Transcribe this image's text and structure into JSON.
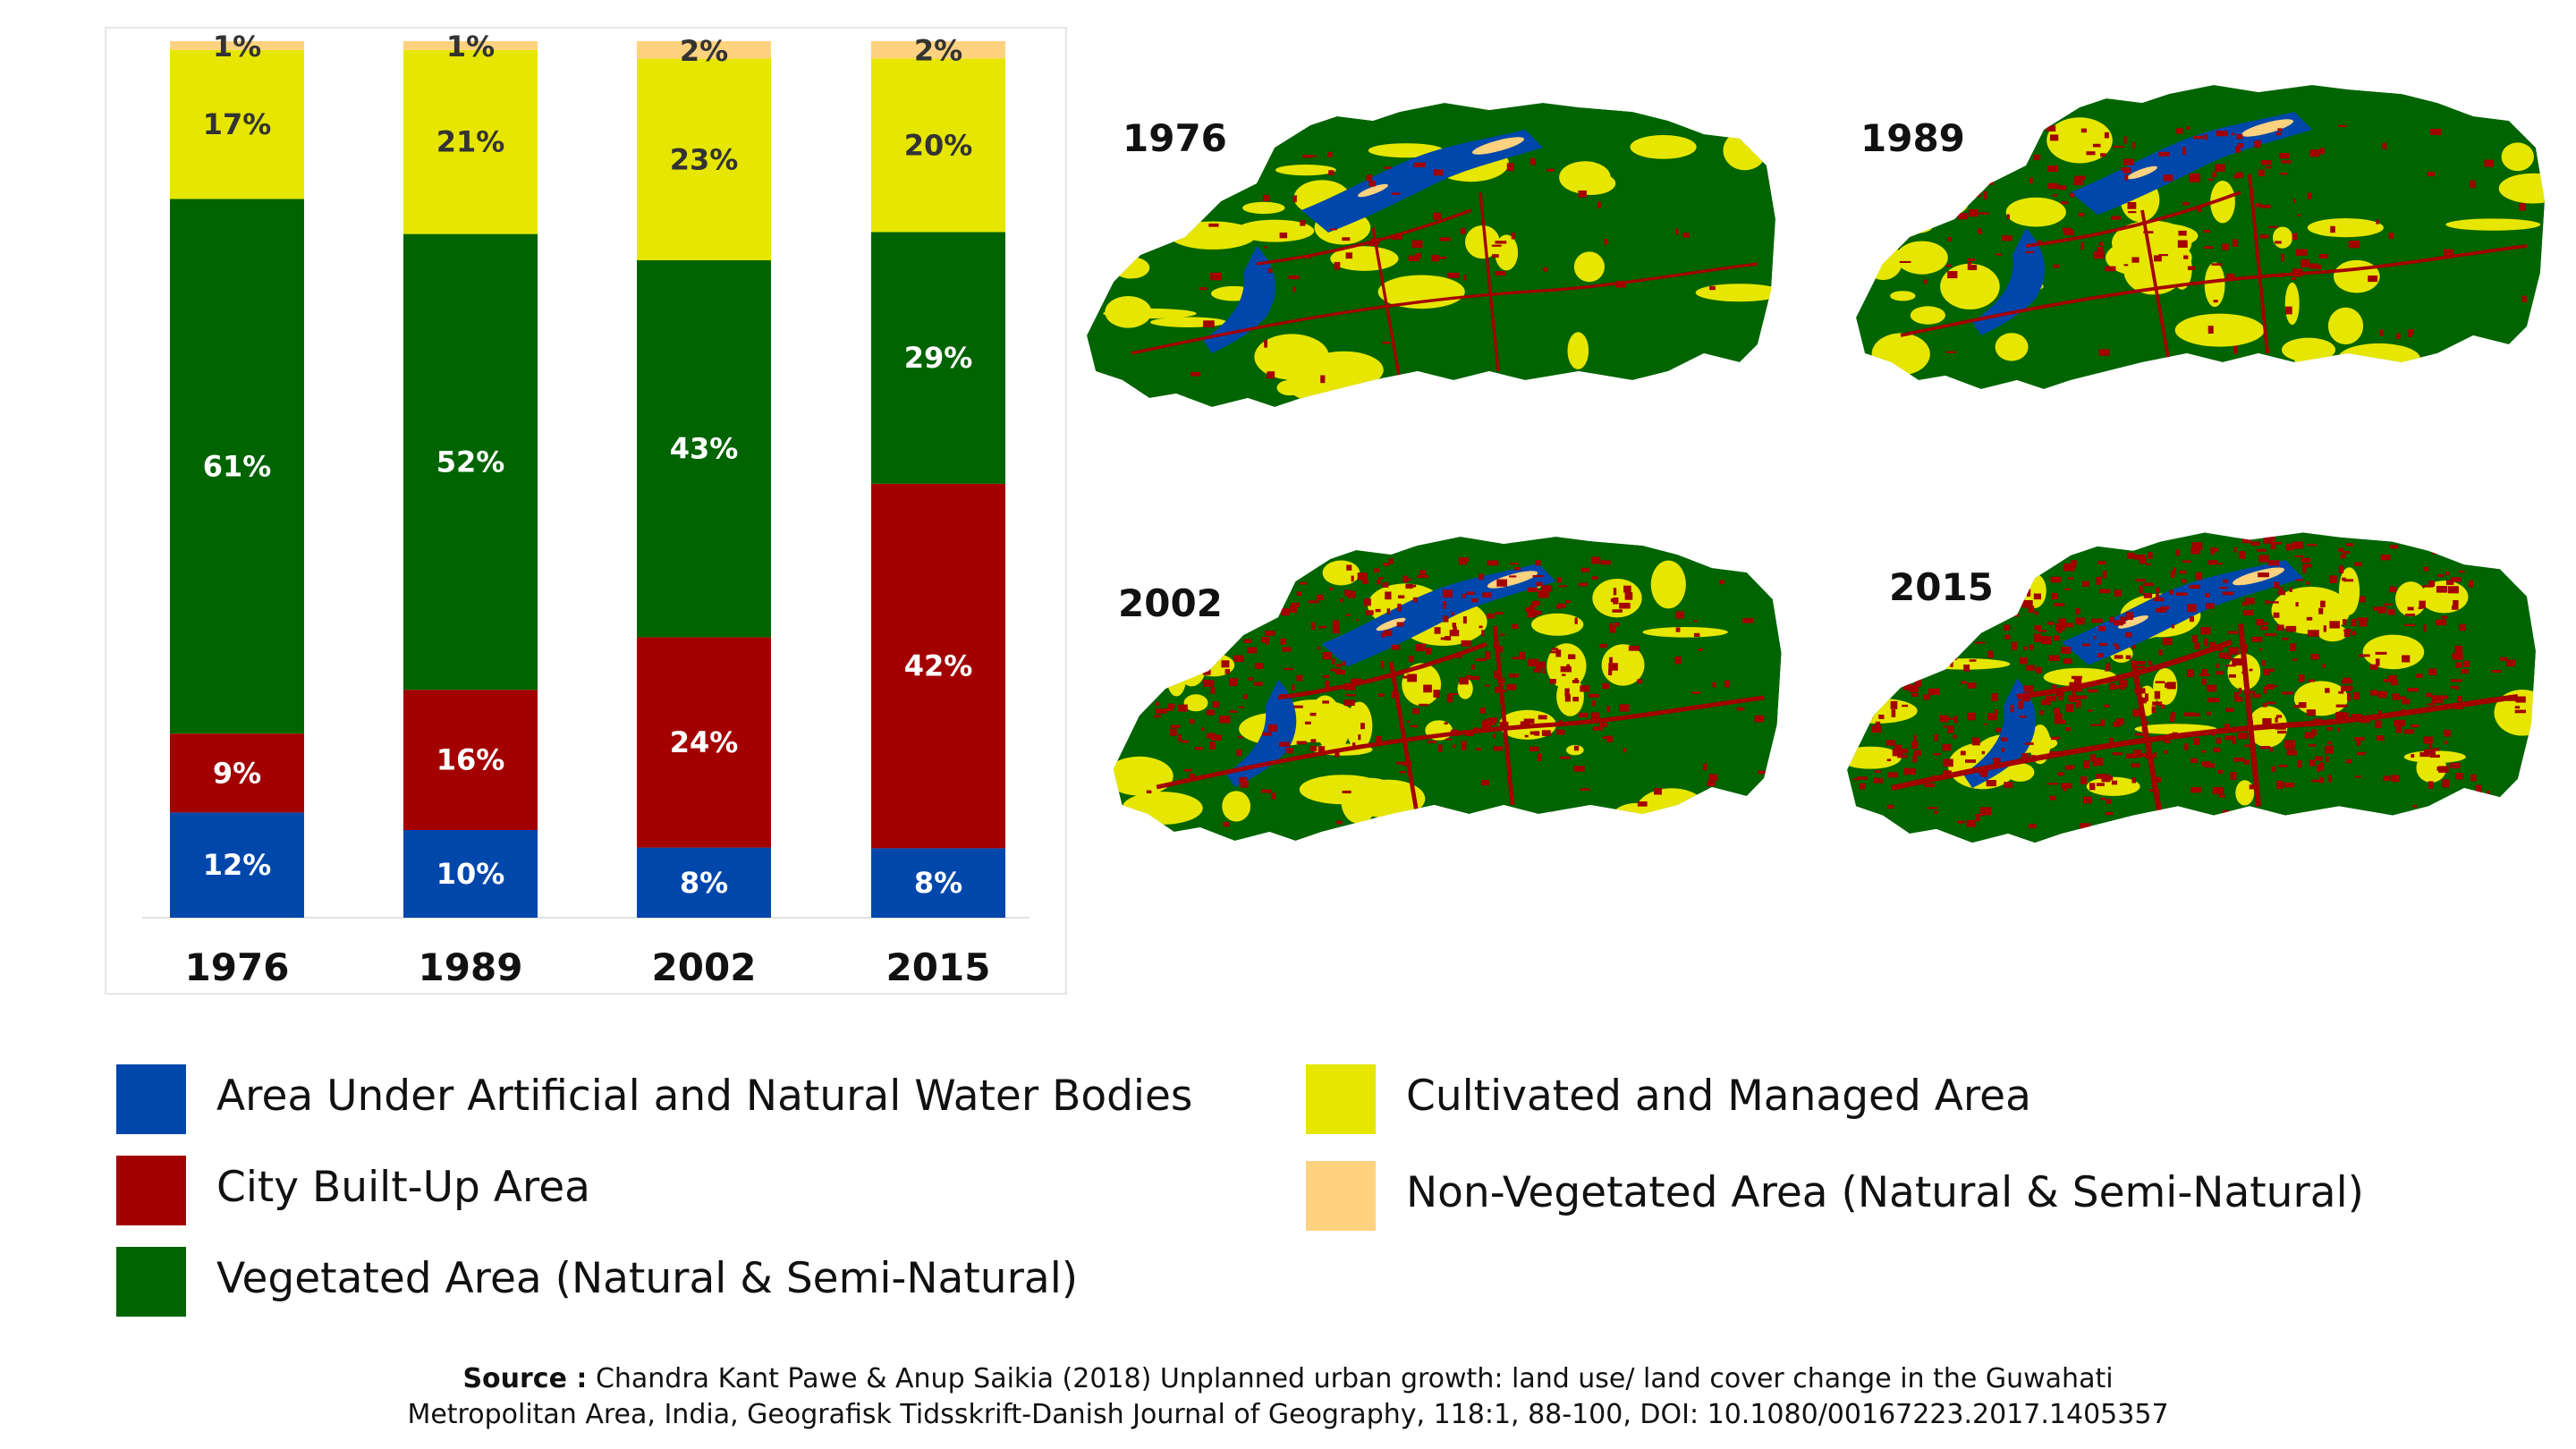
{
  "chart_data": {
    "type": "bar",
    "stacked": true,
    "categories": [
      "1976",
      "1989",
      "2002",
      "2015"
    ],
    "series": [
      {
        "name": "Area Under Artificial and Natural Water Bodies",
        "color": "#0047AB",
        "values": [
          12,
          10,
          8,
          8
        ],
        "labels": [
          "12%",
          "10%",
          "8%",
          "8%"
        ]
      },
      {
        "name": "City Built-Up Area",
        "color": "#A30000",
        "values": [
          9,
          16,
          24,
          42
        ],
        "labels": [
          "9%",
          "16%",
          "24%",
          "42%"
        ]
      },
      {
        "name": "Vegetated Area (Natural & Semi-Natural)",
        "color": "#006400",
        "values": [
          61,
          52,
          43,
          29
        ],
        "labels": [
          "61%",
          "52%",
          "43%",
          "29%"
        ]
      },
      {
        "name": "Cultivated and Managed Area",
        "color": "#E6E600",
        "values": [
          17,
          21,
          23,
          20
        ],
        "labels": [
          "17%",
          "21%",
          "23%",
          "20%"
        ]
      },
      {
        "name": "Non-Vegetated Area (Natural & Semi-Natural)",
        "color": "#FFD27F",
        "values": [
          1,
          1,
          2,
          2
        ],
        "labels": [
          "1%",
          "1%",
          "2%",
          "2%"
        ]
      }
    ],
    "ylim": [
      0,
      100
    ],
    "xlabel": "",
    "ylabel": "",
    "title": "",
    "grid": false
  },
  "maps": {
    "years": [
      "1976",
      "1989",
      "2002",
      "2015"
    ]
  },
  "legend": {
    "items": [
      {
        "label": "Area Under Artificial and Natural Water Bodies",
        "color": "#0047AB"
      },
      {
        "label": "City Built-Up Area",
        "color": "#A30000"
      },
      {
        "label": "Vegetated Area (Natural & Semi-Natural)",
        "color": "#006400"
      },
      {
        "label": "Cultivated and Managed Area",
        "color": "#E6E600"
      },
      {
        "label": "Non-Vegetated Area (Natural & Semi-Natural)",
        "color": "#FFD27F"
      }
    ]
  },
  "source": {
    "label": "Source :",
    "line1": "Chandra Kant Pawe & Anup Saikia (2018) Unplanned urban growth: land use/ land cover change in the Guwahati",
    "line2": "Metropolitan Area, India, Geografisk Tidsskrift-Danish Journal of Geography, 118:1, 88-100, DOI: 10.1080/00167223.2017.1405357"
  }
}
